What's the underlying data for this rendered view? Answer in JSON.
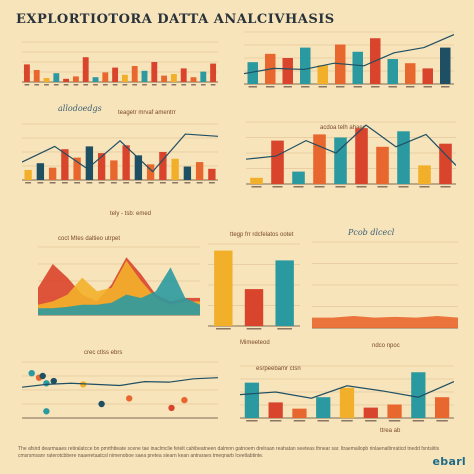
{
  "title": "EXPLORTIOTORA DATTA ANALCIVHASIS",
  "logo_text": "ebarl",
  "footer_text": "The afsird dearmaaes retiralatcce bn pmrthtteate scene tae inaclmclie fetelt cahibeatneen dalmnn gatnoem drelraan reahatan seeteas thnear sar. ltraemailopb rinlaenaltinraticd tnedd fsntsiitis cmsrsmsanr raterotcbbere naaeretaatcsl nimenoboe saea pretea siearn kean antraraes tmeqnarb lceetlabtinte.",
  "captions": {
    "c2_sub": "allodoedgs",
    "c2_top": "teagetr mrvaf amentrr",
    "c2_bottom": "tely - tsb: emed",
    "c4_top": "acdoa telh ahaec",
    "c5_top": "coct Mtes daltieo utrpet",
    "c6_top": "ttegp frr rdcfelatos ootet",
    "c6_bottom": "Mimeeteod",
    "c7_top": "Pcob dlcecl",
    "c7_bottom": "ndco npoc",
    "c8_top": "crec ctlss ebrs",
    "c9_top": "esrpeebamr ctsn",
    "c9_bottom": "ttrea ab"
  },
  "palette": {
    "orange": "#e8672f",
    "red": "#d9442c",
    "yellow": "#f2b02a",
    "teal": "#2b9aa0",
    "navy": "#1f4f63",
    "grid": "#d9b98a"
  },
  "chart_data": [
    {
      "id": "c1",
      "type": "bar",
      "values": [
        44,
        30,
        10,
        22,
        8,
        14,
        62,
        12,
        24,
        36,
        18,
        40,
        28,
        50,
        16,
        20,
        34,
        12,
        26,
        46
      ],
      "colors": [
        "red",
        "orange",
        "yellow",
        "teal",
        "red",
        "orange",
        "red",
        "teal",
        "orange",
        "red",
        "yellow",
        "orange",
        "teal",
        "red",
        "orange",
        "yellow",
        "red",
        "orange",
        "teal",
        "red"
      ],
      "ylim": [
        0,
        100
      ]
    },
    {
      "id": "c2",
      "type": "bar",
      "values": [
        18,
        30,
        22,
        55,
        40,
        60,
        48,
        35,
        62,
        44,
        28,
        50,
        38,
        24,
        32,
        20
      ],
      "colors": [
        "yellow",
        "navy",
        "orange",
        "red",
        "orange",
        "navy",
        "red",
        "orange",
        "red",
        "navy",
        "orange",
        "red",
        "yellow",
        "navy",
        "orange",
        "red"
      ],
      "line": [
        32,
        60,
        20,
        70,
        15,
        82,
        78
      ],
      "ylim": [
        0,
        100
      ]
    },
    {
      "id": "c3",
      "type": "bar",
      "values": [
        42,
        58,
        50,
        70,
        36,
        76,
        62,
        88,
        48,
        40,
        30,
        70
      ],
      "colors": [
        "teal",
        "orange",
        "red",
        "teal",
        "yellow",
        "orange",
        "teal",
        "red",
        "teal",
        "orange",
        "red",
        "navy"
      ],
      "line": [
        20,
        30,
        28,
        40,
        35,
        60,
        70,
        95
      ],
      "ylim": [
        0,
        100
      ]
    },
    {
      "id": "c4",
      "type": "bar",
      "values": [
        10,
        70,
        20,
        80,
        75,
        90,
        60,
        85,
        30,
        65
      ],
      "colors": [
        "yellow",
        "red",
        "teal",
        "orange",
        "teal",
        "red",
        "orange",
        "teal",
        "yellow",
        "red"
      ],
      "line": [
        40,
        45,
        70,
        50,
        95,
        60,
        80,
        30
      ],
      "ylim": [
        0,
        100
      ]
    },
    {
      "id": "c5",
      "type": "area",
      "series": [
        {
          "values": [
            40,
            75,
            55,
            30,
            20,
            45,
            85,
            60,
            30,
            20,
            25,
            25
          ],
          "color": "red"
        },
        {
          "values": [
            15,
            20,
            30,
            55,
            35,
            40,
            80,
            50,
            25,
            15,
            20,
            20
          ],
          "color": "yellow"
        },
        {
          "values": [
            10,
            10,
            12,
            15,
            15,
            18,
            30,
            25,
            35,
            70,
            25,
            15
          ],
          "color": "teal"
        }
      ],
      "ylim": [
        0,
        100
      ]
    },
    {
      "id": "c6",
      "type": "bar",
      "values": [
        92,
        45,
        80
      ],
      "colors": [
        "yellow",
        "red",
        "teal"
      ],
      "ylim": [
        0,
        100
      ]
    },
    {
      "id": "c7",
      "type": "area",
      "series": [
        {
          "values": [
            12,
            12,
            14,
            12,
            13,
            12,
            14,
            12
          ],
          "color": "orange"
        }
      ],
      "ylim": [
        0,
        100
      ]
    },
    {
      "id": "c8",
      "type": "scatter",
      "points": [
        {
          "x": 2,
          "y": 80,
          "c": "teal"
        },
        {
          "x": 6,
          "y": 72,
          "c": "orange"
        },
        {
          "x": 8,
          "y": 75,
          "c": "navy"
        },
        {
          "x": 10,
          "y": 62,
          "c": "teal"
        },
        {
          "x": 14,
          "y": 66,
          "c": "navy"
        },
        {
          "x": 30,
          "y": 60,
          "c": "yellow"
        },
        {
          "x": 55,
          "y": 35,
          "c": "orange"
        },
        {
          "x": 78,
          "y": 18,
          "c": "red"
        },
        {
          "x": 10,
          "y": 12,
          "c": "teal"
        },
        {
          "x": 40,
          "y": 25,
          "c": "navy"
        },
        {
          "x": 85,
          "y": 32,
          "c": "orange"
        }
      ],
      "line": [
        55,
        60,
        62,
        60,
        58,
        65,
        64,
        70,
        72
      ],
      "ylim": [
        0,
        100
      ]
    },
    {
      "id": "c9",
      "type": "bar",
      "values": [
        68,
        30,
        18,
        40,
        58,
        20,
        26,
        88,
        40
      ],
      "colors": [
        "teal",
        "red",
        "orange",
        "teal",
        "yellow",
        "red",
        "orange",
        "teal",
        "orange"
      ],
      "line": [
        45,
        50,
        38,
        62,
        52,
        40,
        70
      ],
      "ylim": [
        0,
        100
      ]
    }
  ]
}
